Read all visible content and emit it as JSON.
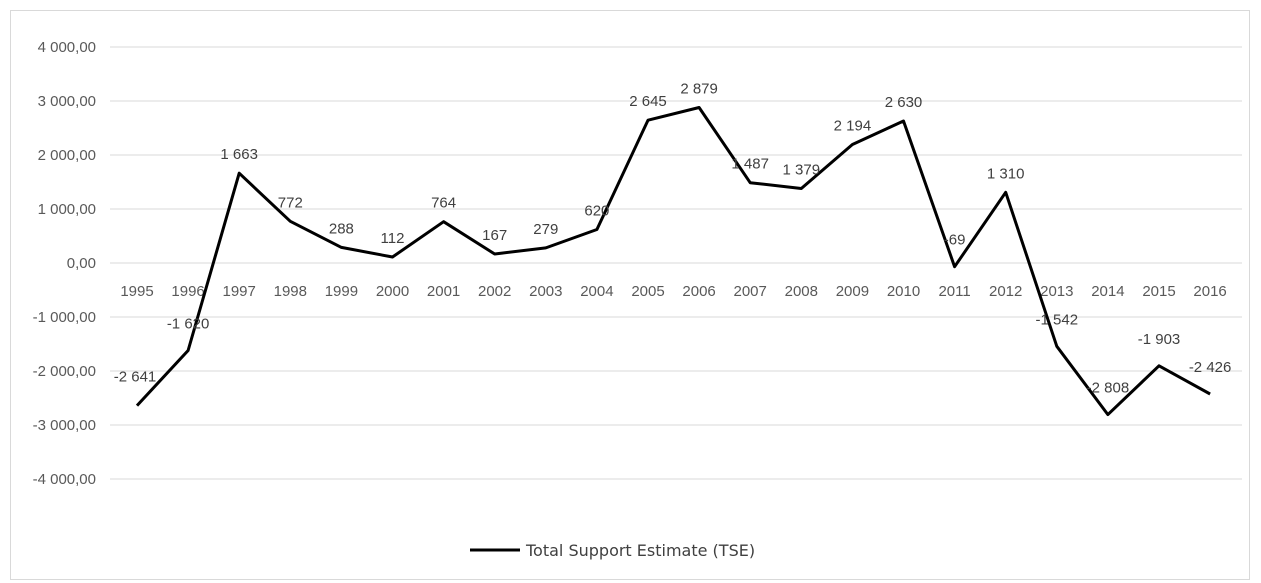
{
  "chart_data": {
    "type": "line",
    "title": "",
    "xlabel": "",
    "ylabel": "",
    "ylim": [
      -4000,
      4000
    ],
    "y_ticks": [
      "4 000,00",
      "3 000,00",
      "2 000,00",
      "1 000,00",
      "0,00",
      "-1 000,00",
      "-2 000,00",
      "-3 000,00",
      "-4 000,00"
    ],
    "y_tick_values": [
      4000,
      3000,
      2000,
      1000,
      0,
      -1000,
      -2000,
      -3000,
      -4000
    ],
    "categories": [
      "1995",
      "1996",
      "1997",
      "1998",
      "1999",
      "2000",
      "2001",
      "2002",
      "2003",
      "2004",
      "2005",
      "2006",
      "2007",
      "2008",
      "2009",
      "2010",
      "2011",
      "2012",
      "2013",
      "2014",
      "2015",
      "2016"
    ],
    "series": [
      {
        "name": "Total Support Estimate (TSE)",
        "color": "#000000",
        "values": [
          -2641,
          -1620,
          1663,
          772,
          288,
          112,
          764,
          167,
          279,
          620,
          2645,
          2879,
          1487,
          1379,
          2194,
          2630,
          -69,
          1310,
          -1542,
          -2808,
          -1903,
          -2426
        ],
        "labels": [
          "-2 641",
          "-1 620",
          "1 663",
          "772",
          "288",
          "112",
          "764",
          "167",
          "279",
          "620",
          "2 645",
          "2 879",
          "1 487",
          "1 379",
          "2 194",
          "2 630",
          "-69",
          "1 310",
          "-1 542",
          "-2 808",
          "-1 903",
          "-2 426"
        ]
      }
    ],
    "grid": true,
    "legend": "bottom-center"
  }
}
